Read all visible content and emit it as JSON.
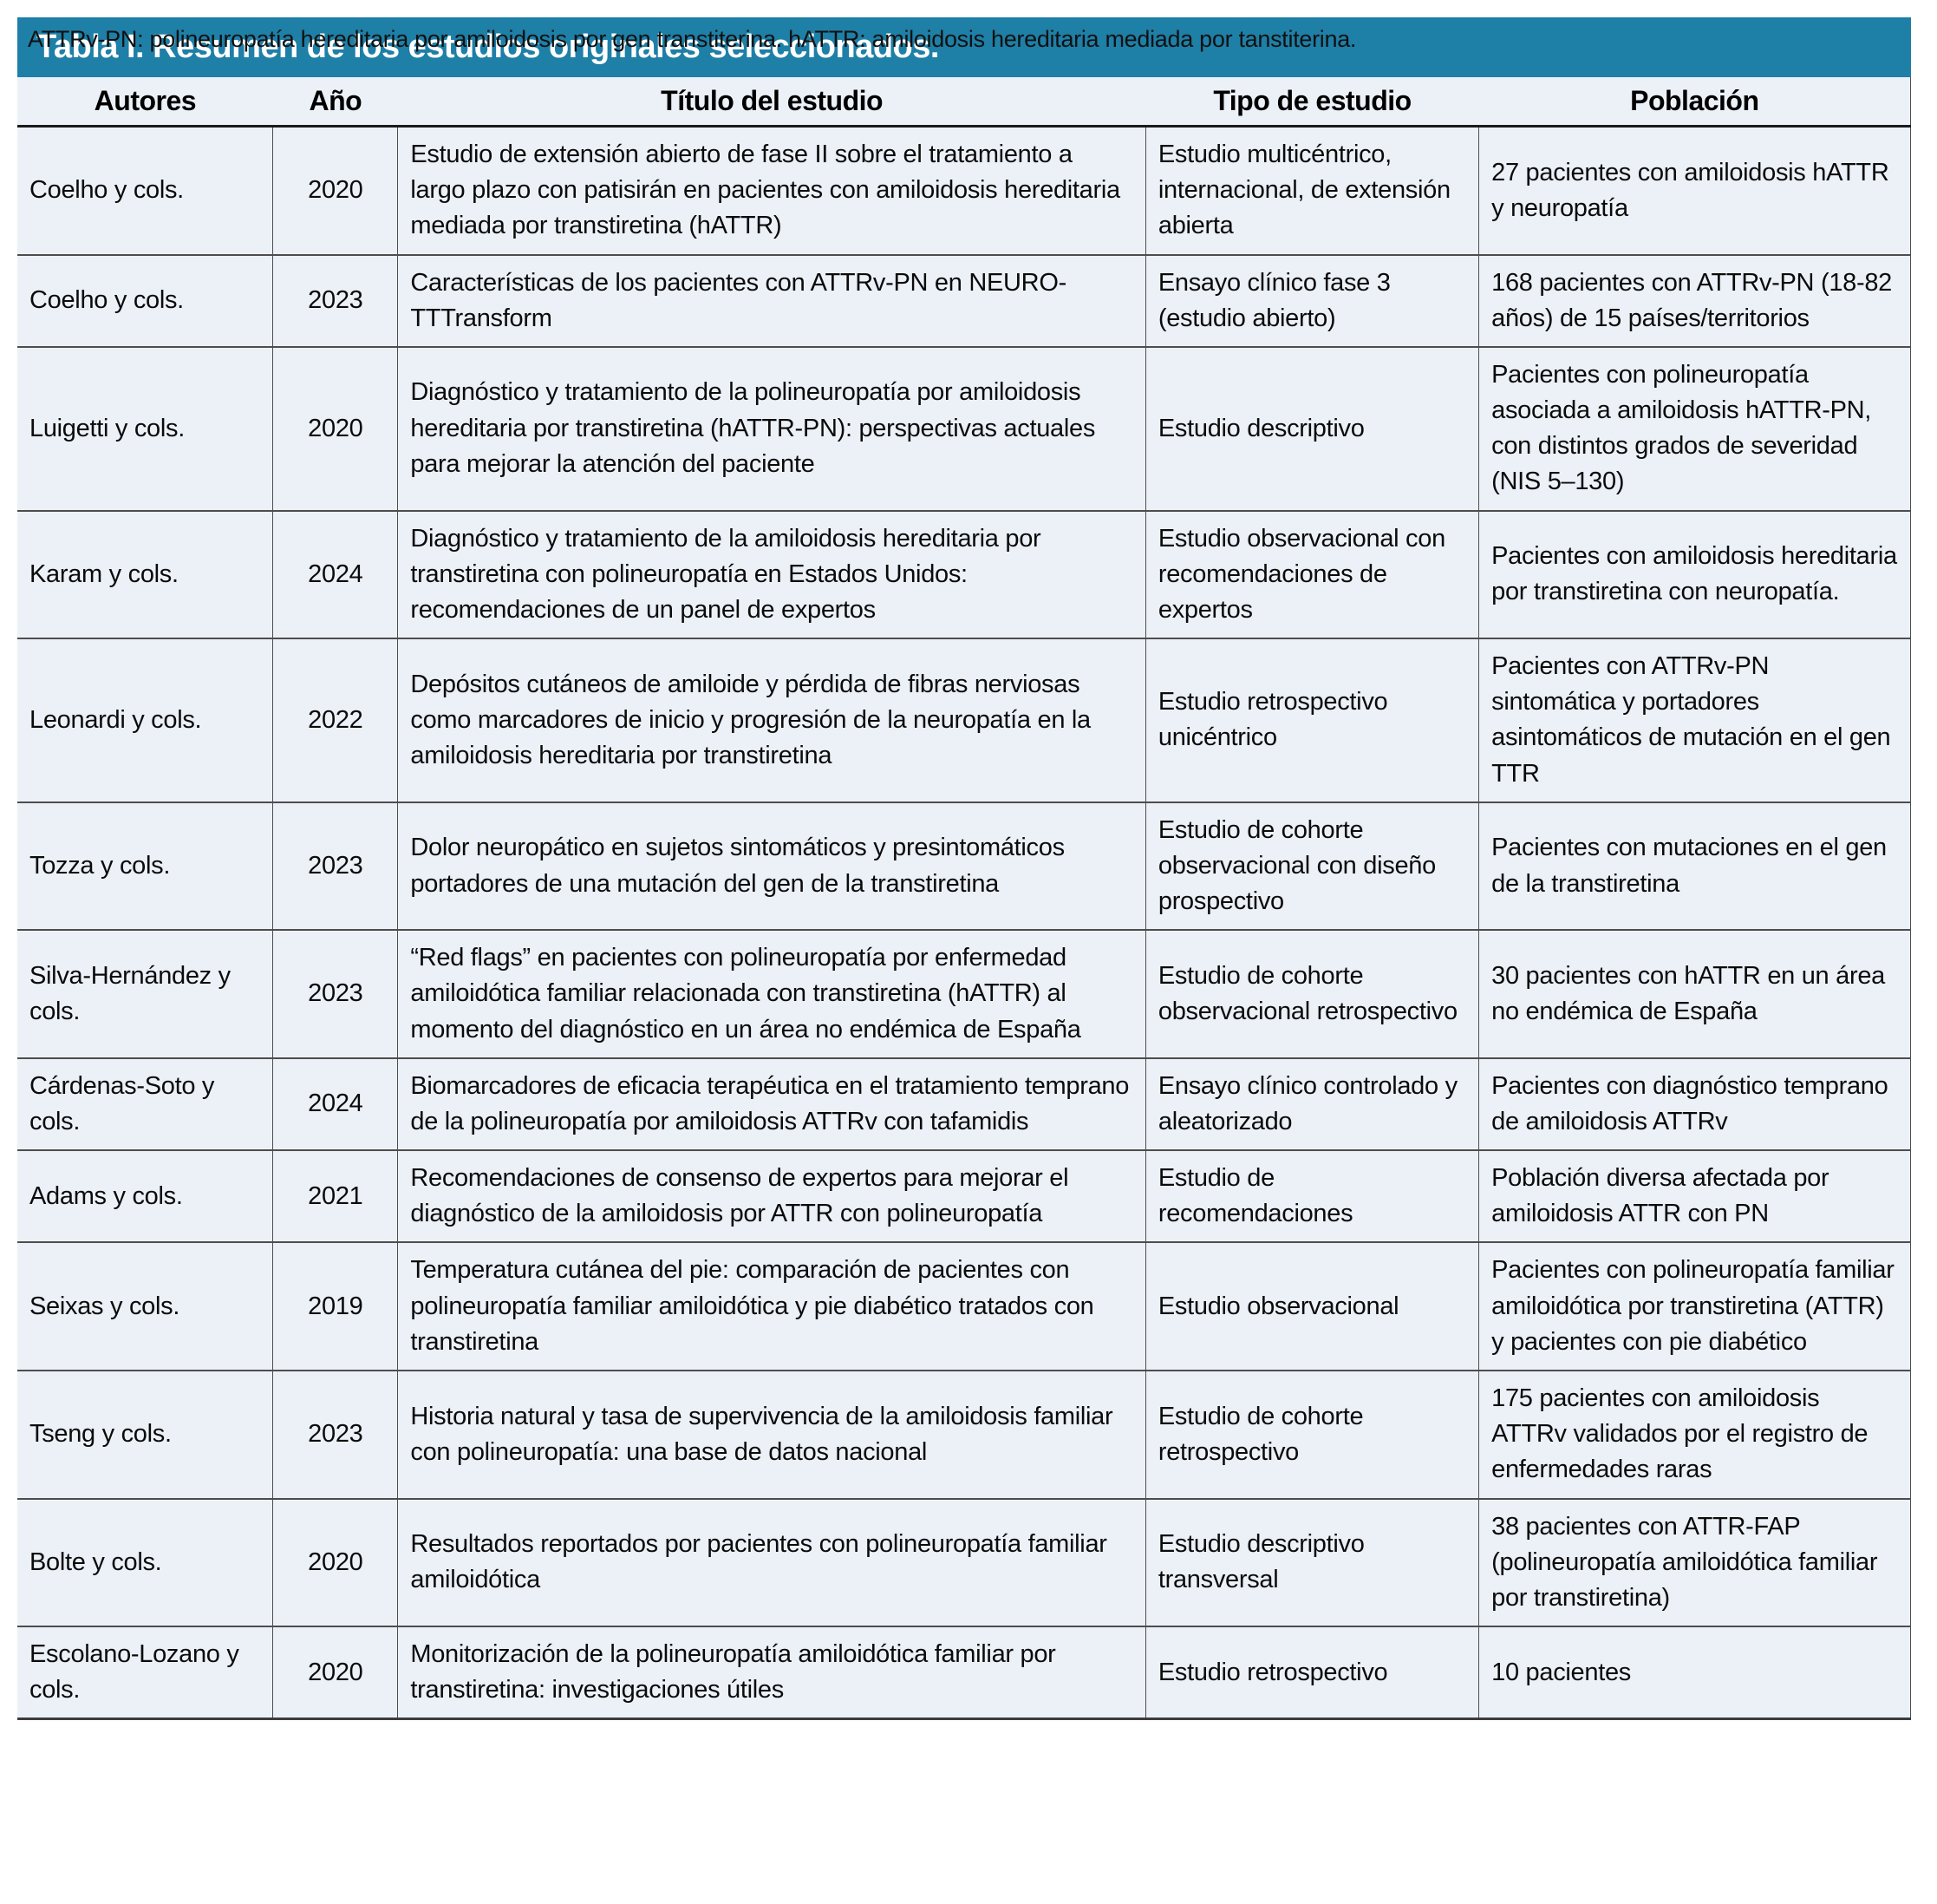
{
  "colors": {
    "title_bar_bg": "#1E7FA7",
    "title_bar_text": "#FFFFFF",
    "table_body_bg": "#ECF1F8",
    "rule_color": "#4D4D4D",
    "page_bg": "#FFFFFF"
  },
  "table": {
    "title": "Tabla I. Resumen de los estudios originales seleccionados.",
    "columns": [
      "Autores",
      "Año",
      "Título del estudio",
      "Tipo de estudio",
      "Población"
    ],
    "rows": [
      {
        "autores": "Coelho y cols.",
        "ano": "2020",
        "titulo": "Estudio de extensión abierto de fase II sobre el tratamiento a largo plazo con patisirán en pacientes con amiloidosis hereditaria mediada por transtiretina (hATTR)",
        "tipo": "Estudio multicéntrico, internacional, de extensión abierta",
        "poblacion": "27 pacientes con amiloidosis hATTR y neuropatía"
      },
      {
        "autores": "Coelho y cols.",
        "ano": "2023",
        "titulo": "Características de los pacientes con ATTRv-PN en NEURO-TTTransform",
        "tipo": "Ensayo clínico fase 3 (estudio abierto)",
        "poblacion": "168 pacientes con ATTRv-PN (18-82 años) de 15 países/territorios"
      },
      {
        "autores": "Luigetti y cols.",
        "ano": "2020",
        "titulo": "Diagnóstico y tratamiento de la polineuropatía por amiloidosis hereditaria por transtiretina (hATTR-PN): perspectivas actuales para mejorar la atención del paciente",
        "tipo": "Estudio descriptivo",
        "poblacion": "Pacientes con polineuropatía asociada a amiloidosis hATTR-PN, con distintos grados de severidad (NIS 5–130)"
      },
      {
        "autores": "Karam y cols.",
        "ano": "2024",
        "titulo": "Diagnóstico y tratamiento de la amiloidosis hereditaria por transtiretina con polineuropatía en Estados Unidos: recomendaciones de un panel de expertos",
        "tipo": "Estudio observacional con recomendaciones de expertos",
        "poblacion": "Pacientes con amiloidosis hereditaria por transtiretina con neuropatía."
      },
      {
        "autores": "Leonardi y cols.",
        "ano": "2022",
        "titulo": "Depósitos cutáneos de amiloide y pérdida de fibras nerviosas como marcadores de inicio y progresión de la neuropatía en la amiloidosis hereditaria por transtiretina",
        "tipo": "Estudio retrospectivo unicéntrico",
        "poblacion": "Pacientes con ATTRv-PN sintomática y portadores asintomáticos de mutación en el gen TTR"
      },
      {
        "autores": "Tozza y cols.",
        "ano": "2023",
        "titulo": "Dolor neuropático en sujetos sintomáticos y presintomáticos portadores de una mutación del gen de la transtiretina",
        "tipo": "Estudio de cohorte observacional con diseño prospectivo",
        "poblacion": "Pacientes con mutaciones en el gen de la transtiretina"
      },
      {
        "autores": "Silva-Hernández y cols.",
        "ano": "2023",
        "titulo": "“Red flags” en pacientes con polineuropatía por enfermedad amiloidótica familiar relacionada con transtiretina (hATTR) al momento del diagnóstico en un área no endémica de España",
        "tipo": "Estudio de cohorte observacional retrospectivo",
        "poblacion": "30 pacientes con hATTR en un área no endémica de España"
      },
      {
        "autores": "Cárdenas-Soto y cols.",
        "ano": "2024",
        "titulo": "Biomarcadores de eficacia terapéutica en el tratamiento temprano de la polineuropatía por amiloidosis ATTRv con tafamidis",
        "tipo": "Ensayo clínico controlado y aleatorizado",
        "poblacion": "Pacientes con diagnóstico temprano de amiloidosis ATTRv"
      },
      {
        "autores": "Adams y cols.",
        "ano": "2021",
        "titulo": "Recomendaciones de consenso de expertos para mejorar el diagnóstico de la amiloidosis por ATTR con polineuropatía",
        "tipo": "Estudio de recomendaciones",
        "poblacion": "Población diversa afectada por amiloidosis ATTR con PN"
      },
      {
        "autores": "Seixas y cols.",
        "ano": "2019",
        "titulo": "Temperatura cutánea del pie: comparación de pacientes con polineuropatía familiar amiloidótica y pie diabético tratados con transtiretina",
        "tipo": "Estudio observacional",
        "poblacion": "Pacientes con polineuropatía familiar amiloidótica por transtiretina (ATTR) y pacientes con pie diabético"
      },
      {
        "autores": "Tseng y cols.",
        "ano": "2023",
        "titulo": "Historia natural y tasa de supervivencia de la amiloidosis familiar con polineuropatía: una base de datos nacional",
        "tipo": "Estudio de cohorte retrospectivo",
        "poblacion": "175 pacientes con amiloidosis ATTRv validados por el registro de enfermedades raras"
      },
      {
        "autores": "Bolte y cols.",
        "ano": "2020",
        "titulo": "Resultados reportados por pacientes con polineuropatía familiar amiloidótica",
        "tipo": "Estudio descriptivo transversal",
        "poblacion": "38 pacientes con ATTR-FAP (polineuropatía amiloidótica familiar por transtiretina)"
      },
      {
        "autores": "Escolano-Lozano y cols.",
        "ano": "2020",
        "titulo": "Monitorización de la polineuropatía amiloidótica familiar por transtiretina: investigaciones útiles",
        "tipo": "Estudio retrospectivo",
        "poblacion": "10 pacientes"
      }
    ],
    "footnote": "ATTRv-PN: polineuropatía hereditaria por amiloidosis por gen transtiterina. hATTR: amiloidosis hereditaria mediada por tanstiterina."
  }
}
